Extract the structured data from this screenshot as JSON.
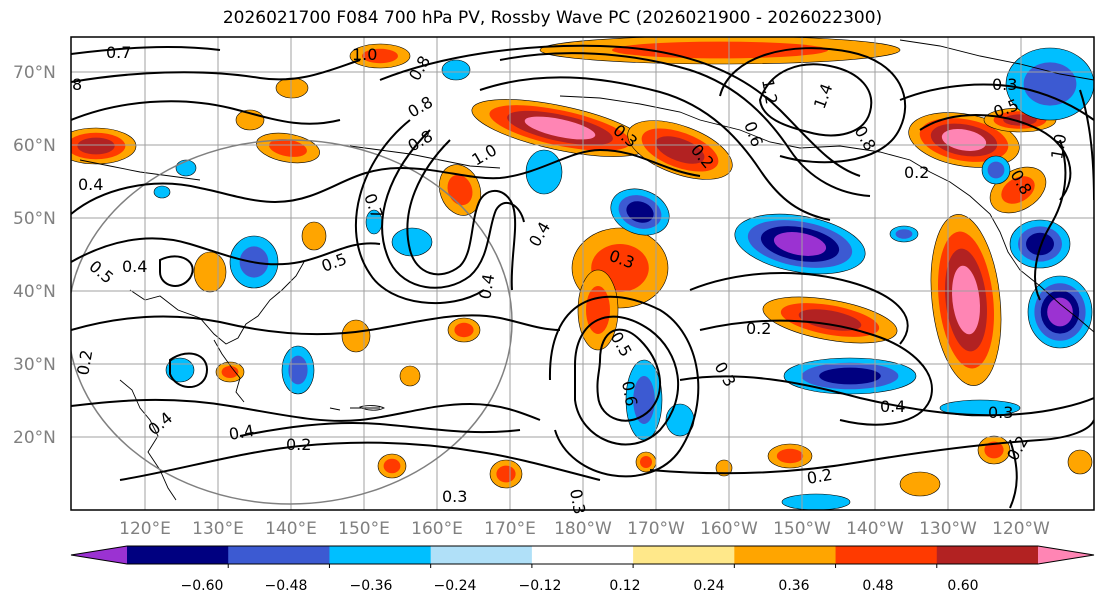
{
  "title": "2026021700 F084 700 hPa PV, Rossby Wave PC (2026021900 - 2026022300)",
  "lat_labels": [
    "70°N",
    "60°N",
    "50°N",
    "40°N",
    "30°N",
    "20°N"
  ],
  "lon_labels": [
    "120°E",
    "130°E",
    "140°E",
    "150°E",
    "160°E",
    "170°E",
    "180°W",
    "170°W",
    "160°W",
    "150°W",
    "140°W",
    "130°W",
    "120°W"
  ],
  "colorbar": {
    "colors": [
      "#9b32d2",
      "#000080",
      "#3c5ad2",
      "#00bfff",
      "#b0e0f8",
      "#ffffff",
      "#ffe88a",
      "#ffa500",
      "#ff3a00",
      "#b22222",
      "#ff85b4"
    ],
    "ticks": [
      "−0.60",
      "−0.48",
      "−0.36",
      "−0.24",
      "−0.12",
      "0.12",
      "0.24",
      "0.36",
      "0.48",
      "0.60"
    ]
  },
  "contour_labels": [
    "0.7",
    "1.0",
    "0.8",
    "0.8",
    "0.8",
    "1.0",
    "0.4",
    "0.5",
    "0.4",
    "0.7",
    "0.5",
    "0.4",
    "0.3",
    "0.2",
    "0.5",
    "0.6",
    "0.3",
    "0.2",
    "0.4",
    "0.2",
    "0.3",
    "0.2",
    "0.4",
    "0.3",
    "0.2",
    "0.3",
    "1.4",
    "1.2",
    "0.6",
    "0.8",
    "0.5",
    "1.0",
    "0.8",
    "0.2",
    "0.4",
    "0.2",
    "0.3",
    "8",
    "0.3",
    "0.4"
  ],
  "colors": {
    "contour": "#000000",
    "grid": "#a0a0a0",
    "axis_label": "#808080"
  }
}
